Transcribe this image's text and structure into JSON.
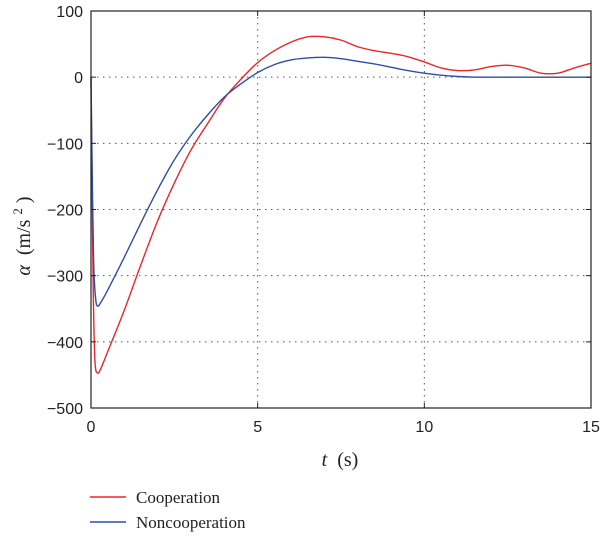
{
  "chart_data": {
    "type": "line",
    "xlabel": {
      "var": "t",
      "unit": "(s)"
    },
    "ylabel": {
      "var": "α",
      "unit_pre": "(m/s",
      "unit_sup": "2",
      "unit_post": ")"
    },
    "xlim": [
      0,
      15
    ],
    "ylim": [
      -500,
      100
    ],
    "x_ticks": [
      0,
      5,
      10,
      15
    ],
    "x_tick_labels": [
      "0",
      "5",
      "10",
      "15"
    ],
    "y_ticks": [
      100,
      0,
      -100,
      -200,
      -300,
      -400,
      -500
    ],
    "y_tick_labels": [
      "100",
      "0",
      "−100",
      "−200",
      "−300",
      "−400",
      "−500"
    ],
    "grid": "dotted",
    "legend_position": "bottom-left",
    "series": [
      {
        "name": "Cooperation",
        "color": "#e8262b",
        "points": [
          [
            0,
            0
          ],
          [
            0.03,
            -150
          ],
          [
            0.07,
            -330
          ],
          [
            0.12,
            -430
          ],
          [
            0.2,
            -447
          ],
          [
            0.3,
            -440
          ],
          [
            0.5,
            -415
          ],
          [
            1.0,
            -352
          ],
          [
            1.5,
            -283
          ],
          [
            2.0,
            -217
          ],
          [
            2.5,
            -160
          ],
          [
            3.0,
            -110
          ],
          [
            3.5,
            -70
          ],
          [
            4.0,
            -32
          ],
          [
            4.5,
            -3
          ],
          [
            5.0,
            22
          ],
          [
            5.5,
            40
          ],
          [
            6.0,
            53
          ],
          [
            6.5,
            61
          ],
          [
            7.0,
            61
          ],
          [
            7.5,
            56
          ],
          [
            8.0,
            46
          ],
          [
            8.5,
            40
          ],
          [
            9.0,
            36
          ],
          [
            9.5,
            31
          ],
          [
            10.0,
            23
          ],
          [
            10.5,
            14
          ],
          [
            11.0,
            10
          ],
          [
            11.5,
            11
          ],
          [
            12.0,
            16
          ],
          [
            12.5,
            18
          ],
          [
            13.0,
            14
          ],
          [
            13.5,
            6
          ],
          [
            14.0,
            6
          ],
          [
            14.5,
            14
          ],
          [
            15.0,
            21
          ]
        ]
      },
      {
        "name": "Noncooperation",
        "color": "#2e4ea6",
        "points": [
          [
            0,
            0
          ],
          [
            0.03,
            -120
          ],
          [
            0.08,
            -280
          ],
          [
            0.14,
            -335
          ],
          [
            0.2,
            -346
          ],
          [
            0.3,
            -340
          ],
          [
            0.5,
            -322
          ],
          [
            1.0,
            -272
          ],
          [
            1.5,
            -220
          ],
          [
            2.0,
            -170
          ],
          [
            2.5,
            -125
          ],
          [
            3.0,
            -88
          ],
          [
            3.5,
            -57
          ],
          [
            4.0,
            -30
          ],
          [
            4.5,
            -10
          ],
          [
            5.0,
            7
          ],
          [
            5.5,
            19
          ],
          [
            6.0,
            26
          ],
          [
            6.5,
            29
          ],
          [
            7.0,
            30
          ],
          [
            7.5,
            28
          ],
          [
            8.0,
            24
          ],
          [
            8.5,
            20
          ],
          [
            9.0,
            15
          ],
          [
            9.5,
            10
          ],
          [
            10.0,
            6
          ],
          [
            10.5,
            3
          ],
          [
            11.0,
            1
          ],
          [
            11.5,
            0
          ],
          [
            12.0,
            0
          ],
          [
            13.0,
            0
          ],
          [
            14.0,
            0
          ],
          [
            15.0,
            0
          ]
        ]
      }
    ]
  }
}
